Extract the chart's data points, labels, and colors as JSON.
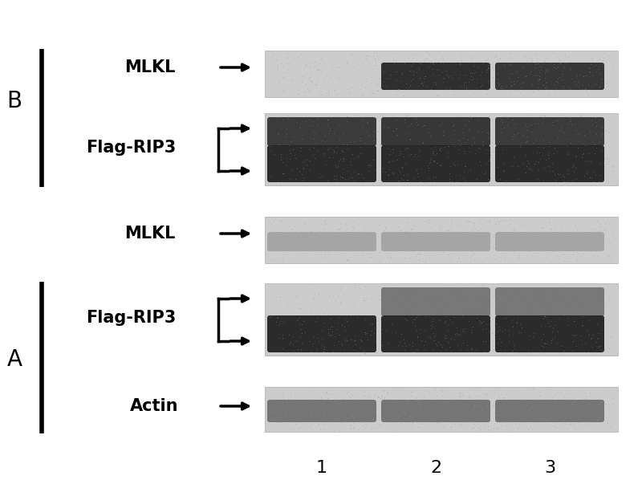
{
  "bg_color": "#e8e8e8",
  "white_color": "#ffffff",
  "dark_color": "#111111",
  "medium_color": "#555555",
  "light_band_color": "#888888",
  "panel_bg": "#d0d0d0",
  "title": "",
  "labels_left": [
    "B",
    "A"
  ],
  "row_labels": [
    "MLKL",
    "Flag-RIP3",
    "MLKL",
    "Flag-RIP3",
    "Actin"
  ],
  "lane_labels": [
    "1",
    "2",
    "3"
  ],
  "fig_width": 8.0,
  "fig_height": 6.03,
  "dpi": 100
}
